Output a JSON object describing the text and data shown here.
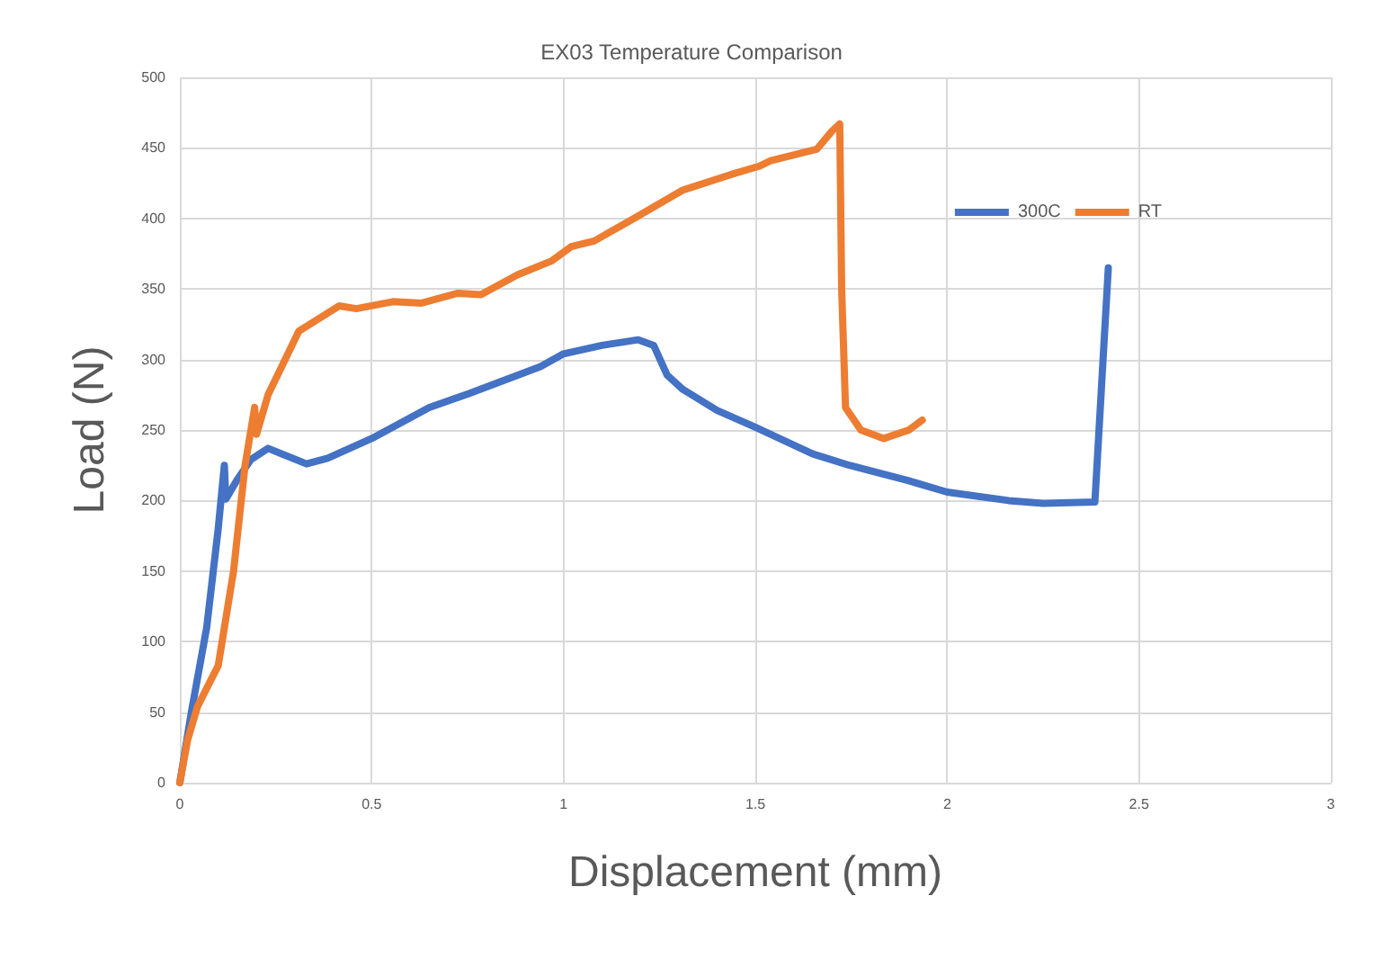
{
  "chart_data": {
    "type": "line",
    "title": "EX03 Temperature Comparison",
    "xlabel": "Displacement (mm)",
    "ylabel": "Load (N)",
    "xlim": [
      0,
      3
    ],
    "xticks": [
      0,
      0.5,
      1,
      1.5,
      2,
      2.5,
      3
    ],
    "ylim": [
      0,
      500
    ],
    "yticks": [
      0,
      50,
      100,
      150,
      200,
      250,
      300,
      350,
      400,
      450,
      500
    ],
    "grid": true,
    "legend": "top right",
    "marker": "none",
    "line_style": "solid",
    "series": [
      {
        "name": "300C",
        "color": "#4472c4",
        "x": [
          0,
          0.03,
          0.07,
          0.1,
          0.116,
          0.12,
          0.15,
          0.185,
          0.23,
          0.33,
          0.385,
          0.5,
          0.65,
          0.755,
          0.94,
          1.0,
          1.1,
          1.195,
          1.235,
          1.27,
          1.31,
          1.4,
          1.5,
          1.65,
          1.745,
          1.9,
          2.0,
          2.16,
          2.25,
          2.385,
          2.42
        ],
        "values": [
          0,
          50,
          110,
          180,
          225,
          201,
          215,
          229,
          237,
          226,
          230,
          244,
          266,
          276,
          295,
          304,
          310,
          314,
          310,
          289,
          279,
          264,
          252,
          233,
          225,
          214,
          206,
          200,
          198,
          199,
          365
        ]
      },
      {
        "name": "RT",
        "color": "#ed7d31",
        "x": [
          0,
          0.02,
          0.046,
          0.1,
          0.14,
          0.17,
          0.195,
          0.2,
          0.23,
          0.31,
          0.415,
          0.46,
          0.555,
          0.63,
          0.725,
          0.785,
          0.88,
          0.97,
          1.02,
          1.08,
          1.19,
          1.31,
          1.435,
          1.51,
          1.54,
          1.66,
          1.7,
          1.72,
          1.725,
          1.735,
          1.775,
          1.835,
          1.9,
          1.935
        ],
        "values": [
          0,
          30,
          54,
          83,
          150,
          225,
          266,
          247,
          275,
          320,
          338,
          336,
          341,
          340,
          347,
          346,
          360,
          370,
          380,
          384,
          401,
          420,
          431,
          437,
          441,
          449,
          462,
          467,
          350,
          266,
          250,
          244,
          250,
          257
        ]
      }
    ]
  }
}
